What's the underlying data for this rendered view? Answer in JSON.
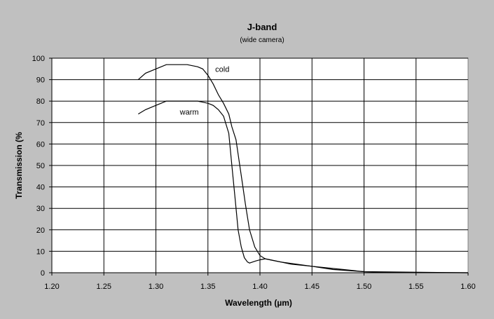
{
  "chart_data": {
    "type": "line",
    "title": "J-band",
    "subtitle": "(wide camera)",
    "xlabel": "Wavelength (µm)",
    "ylabel": "Transmission (%",
    "xlim": [
      1.2,
      1.6
    ],
    "ylim": [
      0,
      100
    ],
    "x_ticks": [
      "1.20",
      "1.25",
      "1.30",
      "1.35",
      "1.40",
      "1.45",
      "1.50",
      "1.55",
      "1.60"
    ],
    "y_ticks": [
      "0",
      "10",
      "20",
      "30",
      "40",
      "50",
      "60",
      "70",
      "80",
      "90",
      "100"
    ],
    "grid": true,
    "series": [
      {
        "name": "cold",
        "color": "#000000",
        "x": [
          1.283,
          1.29,
          1.3,
          1.31,
          1.32,
          1.33,
          1.34,
          1.345,
          1.35,
          1.355,
          1.36,
          1.365,
          1.37,
          1.373,
          1.377,
          1.38,
          1.383,
          1.386,
          1.39,
          1.395,
          1.4,
          1.405,
          1.41,
          1.42,
          1.43,
          1.45,
          1.47,
          1.5,
          1.52,
          1.55,
          1.6
        ],
        "y": [
          90,
          93,
          95,
          97,
          97,
          97,
          96,
          95,
          92,
          88,
          83,
          79,
          74,
          68,
          62,
          52,
          42,
          32,
          20,
          12,
          8,
          6.5,
          6,
          5,
          4,
          3,
          1.5,
          0.5,
          0.2,
          0.1,
          0
        ]
      },
      {
        "name": "warm",
        "color": "#000000",
        "x": [
          1.283,
          1.29,
          1.3,
          1.31,
          1.32,
          1.33,
          1.34,
          1.35,
          1.355,
          1.36,
          1.365,
          1.37,
          1.373,
          1.376,
          1.379,
          1.382,
          1.385,
          1.388,
          1.39,
          1.393,
          1.396,
          1.4,
          1.405,
          1.41,
          1.42,
          1.45,
          1.5,
          1.6
        ],
        "y": [
          74,
          76,
          78,
          80,
          80,
          80,
          80,
          79,
          78,
          76,
          73,
          65,
          50,
          35,
          20,
          12,
          7,
          5,
          4.5,
          5,
          5.5,
          6,
          6.5,
          6,
          5,
          3,
          0.5,
          0
        ]
      }
    ]
  }
}
